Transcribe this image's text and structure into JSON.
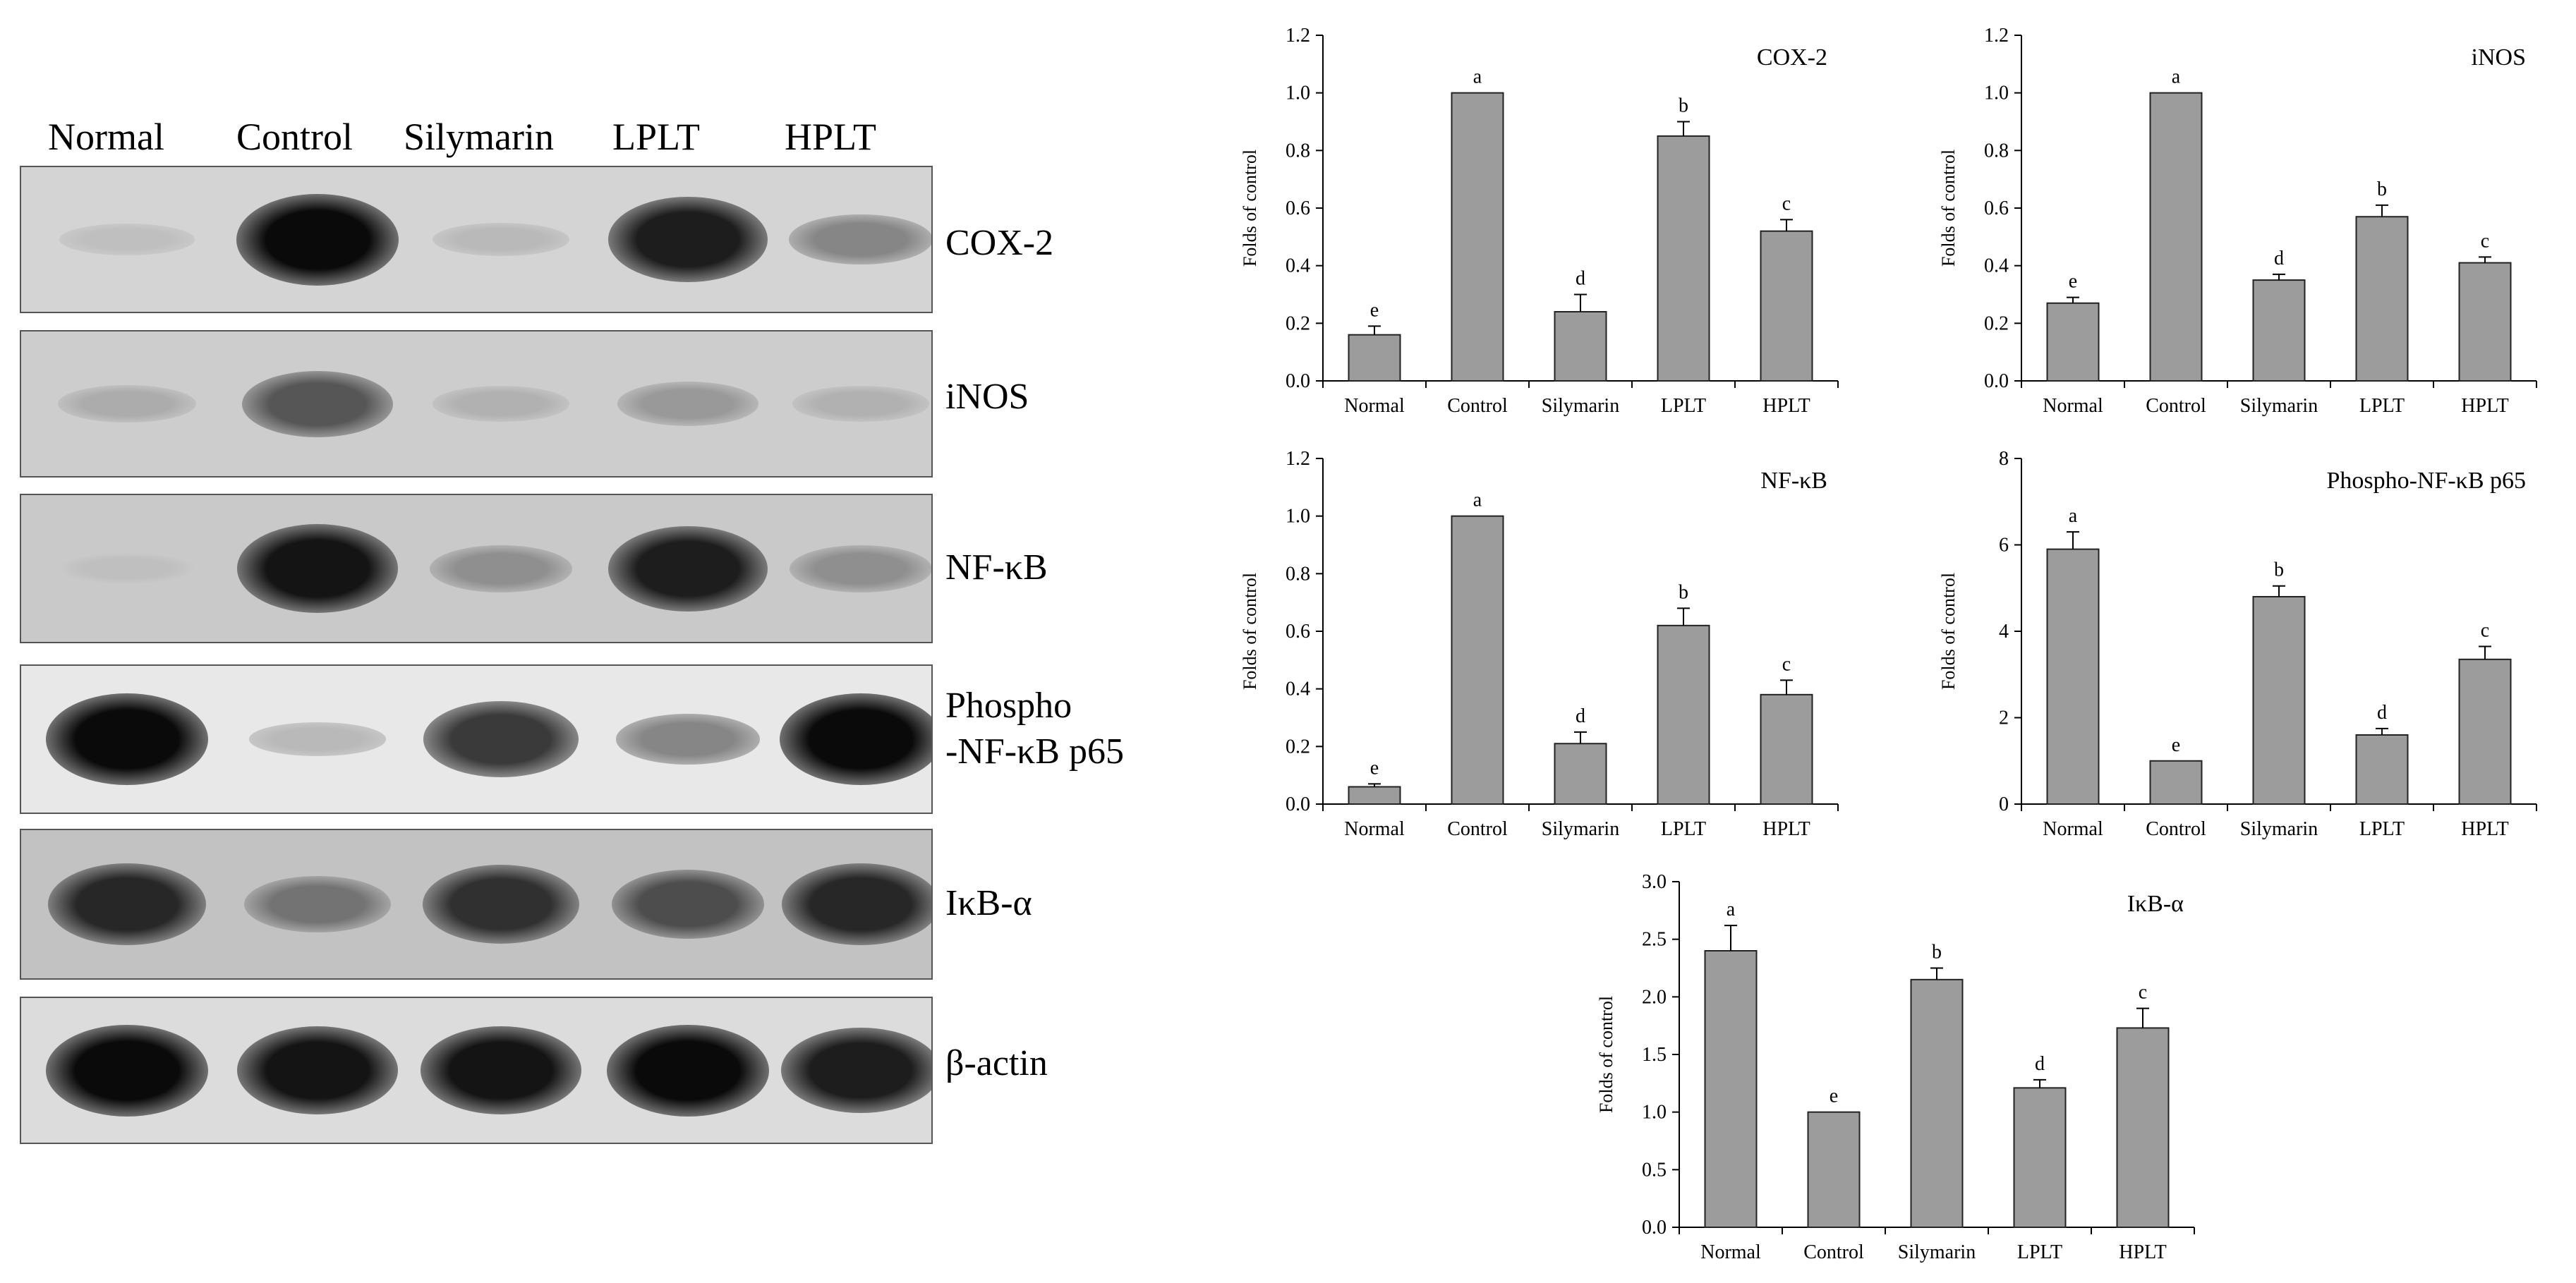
{
  "blot": {
    "lanes": [
      "Normal",
      "Control",
      "Silymarin",
      "LPLT",
      "HPLT"
    ],
    "proteins": [
      {
        "label": "COX-2",
        "intensity": [
          0.05,
          1.0,
          0.08,
          0.9,
          0.35
        ],
        "background": "#d4d4d4"
      },
      {
        "label": "iNOS",
        "intensity": [
          0.15,
          0.6,
          0.12,
          0.25,
          0.12
        ],
        "background": "#cdcdcd"
      },
      {
        "label": "NF-κB",
        "intensity": [
          0.05,
          0.95,
          0.3,
          0.9,
          0.3
        ],
        "background": "#c9c9c9"
      },
      {
        "label": "Phospho -NF-κB p65",
        "label_lines": [
          "Phospho",
          "-NF-κB p65"
        ],
        "intensity": [
          1.0,
          0.08,
          0.75,
          0.35,
          1.0
        ],
        "background": "#e8e8e8"
      },
      {
        "label": "IκB-α",
        "intensity": [
          0.85,
          0.45,
          0.8,
          0.65,
          0.85
        ],
        "background": "#c2c2c2"
      },
      {
        "label": "β-actin",
        "intensity": [
          1.0,
          0.95,
          0.95,
          1.0,
          0.9
        ],
        "background": "#dcdcdc"
      }
    ]
  },
  "chart_data": [
    {
      "type": "bar",
      "title": "COX-2",
      "ylabel": "Folds of control",
      "categories": [
        "Normal",
        "Control",
        "Silymarin",
        "LPLT",
        "HPLT"
      ],
      "values": [
        0.16,
        1.0,
        0.24,
        0.85,
        0.52
      ],
      "errors": [
        0.03,
        0,
        0.06,
        0.05,
        0.04
      ],
      "labels": [
        "e",
        "a",
        "d",
        "b",
        "c"
      ],
      "ylim": [
        0,
        1.2
      ],
      "yticks": [
        "0.0",
        "0.2",
        "0.4",
        "0.6",
        "0.8",
        "1.0",
        "1.2"
      ]
    },
    {
      "type": "bar",
      "title": "iNOS",
      "ylabel": "Folds of control",
      "categories": [
        "Normal",
        "Control",
        "Silymarin",
        "LPLT",
        "HPLT"
      ],
      "values": [
        0.27,
        1.0,
        0.35,
        0.57,
        0.41
      ],
      "errors": [
        0.02,
        0,
        0.02,
        0.04,
        0.02
      ],
      "labels": [
        "e",
        "a",
        "d",
        "b",
        "c"
      ],
      "ylim": [
        0,
        1.2
      ],
      "yticks": [
        "0.0",
        "0.2",
        "0.4",
        "0.6",
        "0.8",
        "1.0",
        "1.2"
      ]
    },
    {
      "type": "bar",
      "title": "NF-κB",
      "ylabel": "Folds of control",
      "categories": [
        "Normal",
        "Control",
        "Silymarin",
        "LPLT",
        "HPLT"
      ],
      "values": [
        0.06,
        1.0,
        0.21,
        0.62,
        0.38
      ],
      "errors": [
        0.01,
        0,
        0.04,
        0.06,
        0.05
      ],
      "labels": [
        "e",
        "a",
        "d",
        "b",
        "c"
      ],
      "ylim": [
        0,
        1.2
      ],
      "yticks": [
        "0.0",
        "0.2",
        "0.4",
        "0.6",
        "0.8",
        "1.0",
        "1.2"
      ]
    },
    {
      "type": "bar",
      "title": "Phospho-NF-κB p65",
      "ylabel": "Folds of control",
      "categories": [
        "Normal",
        "Control",
        "Silymarin",
        "LPLT",
        "HPLT"
      ],
      "values": [
        5.9,
        1.0,
        4.8,
        1.6,
        3.35
      ],
      "errors": [
        0.4,
        0,
        0.25,
        0.15,
        0.3
      ],
      "labels": [
        "a",
        "e",
        "b",
        "d",
        "c"
      ],
      "ylim": [
        0,
        8
      ],
      "yticks": [
        "0",
        "2",
        "4",
        "6",
        "8"
      ]
    },
    {
      "type": "bar",
      "title": "IκB-α",
      "ylabel": "Folds of control",
      "categories": [
        "Normal",
        "Control",
        "Silymarin",
        "LPLT",
        "HPLT"
      ],
      "values": [
        2.4,
        1.0,
        2.15,
        1.21,
        1.73
      ],
      "errors": [
        0.22,
        0,
        0.1,
        0.07,
        0.17
      ],
      "labels": [
        "a",
        "e",
        "b",
        "d",
        "c"
      ],
      "ylim": [
        0,
        3.0
      ],
      "yticks": [
        "0.0",
        "0.5",
        "1.0",
        "1.5",
        "2.0",
        "2.5",
        "3.0"
      ]
    }
  ]
}
